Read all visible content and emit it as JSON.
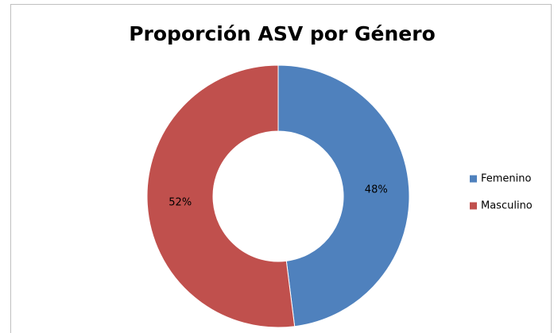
{
  "chart_data": {
    "type": "donut",
    "title": "Proporción ASV por Género",
    "categories": [
      "Femenino",
      "Masculino"
    ],
    "values": [
      48,
      52
    ],
    "value_labels": [
      "48%",
      "52%"
    ],
    "colors": [
      "#4f81bd",
      "#c0504d"
    ],
    "legend": "right"
  }
}
